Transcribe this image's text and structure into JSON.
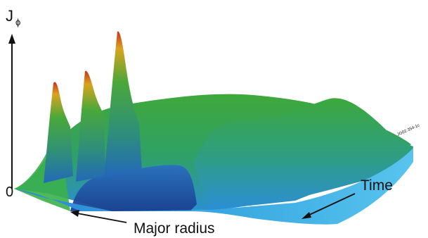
{
  "chart_data": {
    "type": "surface",
    "ylabel": "J",
    "ylabel_subscript": "ϕ",
    "y_tick_labels": [
      "0"
    ],
    "x_axis_label": "Major radius",
    "z_axis_label": "Time",
    "figure_code": "JG02.354-1c",
    "peak_colors": [
      "#c8321e",
      "#d9a31e",
      "#3aa23a",
      "#2e7fd6",
      "#1f4fa8"
    ]
  }
}
